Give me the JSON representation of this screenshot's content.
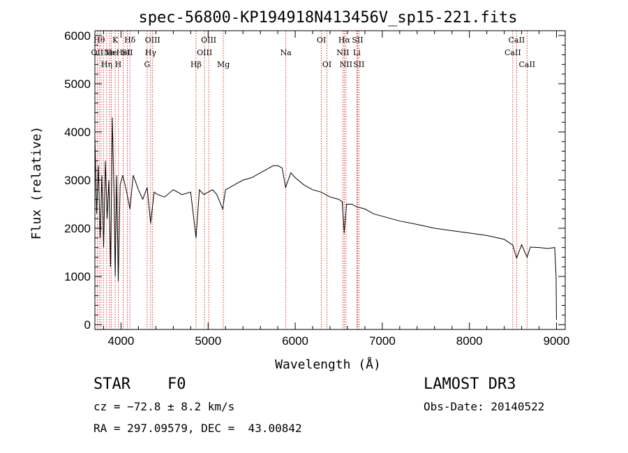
{
  "chart_data": {
    "type": "line",
    "title": "spec-56800-KP194918N413456V_sp15-221.fits",
    "xlabel": "Wavelength (Å)",
    "ylabel": "Flux (relative)",
    "xlim": [
      3700,
      9100
    ],
    "ylim": [
      -100,
      6100
    ],
    "xticks": [
      4000,
      5000,
      6000,
      7000,
      8000,
      9000
    ],
    "xtick_labels": [
      "4000",
      "5000",
      "6000",
      "7000",
      "8000",
      "9000"
    ],
    "yticks": [
      0,
      1000,
      2000,
      3000,
      4000,
      5000,
      6000
    ],
    "ytick_labels": [
      "0",
      "1000",
      "2000",
      "3000",
      "4000",
      "5000",
      "6000"
    ],
    "grid": false,
    "line_color": "#000000",
    "marker_color": "#cc0000",
    "spectrum": {
      "name": "flux",
      "x": [
        3700,
        3720,
        3740,
        3760,
        3780,
        3800,
        3820,
        3840,
        3860,
        3880,
        3900,
        3920,
        3933,
        3950,
        3968,
        3990,
        4020,
        4060,
        4102,
        4140,
        4200,
        4250,
        4300,
        4340,
        4380,
        4420,
        4500,
        4600,
        4700,
        4800,
        4861,
        4900,
        4950,
        5000,
        5050,
        5100,
        5167,
        5200,
        5300,
        5400,
        5500,
        5600,
        5700,
        5750,
        5800,
        5850,
        5890,
        5950,
        6000,
        6100,
        6200,
        6300,
        6400,
        6500,
        6540,
        6563,
        6590,
        6650,
        6700,
        6800,
        6900,
        7000,
        7200,
        7400,
        7600,
        7800,
        8000,
        8200,
        8400,
        8498,
        8542,
        8600,
        8662,
        8700,
        8800,
        8900,
        8980,
        8995,
        9000
      ],
      "y": [
        3900,
        2300,
        3300,
        1800,
        3100,
        1600,
        3400,
        2200,
        3000,
        1200,
        4300,
        2600,
        1000,
        3100,
        900,
        2900,
        3100,
        2800,
        2400,
        3100,
        2800,
        2600,
        2850,
        2100,
        2750,
        2700,
        2650,
        2800,
        2700,
        2750,
        1800,
        2800,
        2700,
        2750,
        2800,
        2700,
        2400,
        2800,
        2900,
        3000,
        3050,
        3150,
        3250,
        3300,
        3300,
        3250,
        2850,
        3150,
        3050,
        2900,
        2800,
        2750,
        2650,
        2600,
        2550,
        1900,
        2500,
        2500,
        2450,
        2400,
        2300,
        2250,
        2150,
        2080,
        2000,
        1950,
        1900,
        1850,
        1770,
        1650,
        1380,
        1660,
        1400,
        1610,
        1600,
        1580,
        1600,
        1000,
        100
      ]
    },
    "line_markers": [
      {
        "x": 3727,
        "label": "OII",
        "row": 1
      },
      {
        "x": 3750,
        "label": "Hθ",
        "row": 0
      },
      {
        "x": 3771,
        "label": "",
        "row": 2
      },
      {
        "x": 3798,
        "label": "",
        "row": 2
      },
      {
        "x": 3835,
        "label": "Hη",
        "row": 2
      },
      {
        "x": 3869,
        "label": "Ne",
        "row": 1
      },
      {
        "x": 3889,
        "label": "He",
        "row": 1
      },
      {
        "x": 3933,
        "label": "K",
        "row": 0
      },
      {
        "x": 3968,
        "label": "H",
        "row": 2
      },
      {
        "x": 4026,
        "label": "HeI",
        "row": 1
      },
      {
        "x": 4072,
        "label": "SII",
        "row": 1
      },
      {
        "x": 4102,
        "label": "Hδ",
        "row": 0
      },
      {
        "x": 4300,
        "label": "G",
        "row": 2
      },
      {
        "x": 4340,
        "label": "Hγ",
        "row": 1
      },
      {
        "x": 4363,
        "label": "OIII",
        "row": 0
      },
      {
        "x": 4861,
        "label": "Hβ",
        "row": 2
      },
      {
        "x": 4959,
        "label": "OIII",
        "row": 1
      },
      {
        "x": 5007,
        "label": "OIII",
        "row": 0
      },
      {
        "x": 5175,
        "label": "Mg",
        "row": 2
      },
      {
        "x": 5893,
        "label": "Na",
        "row": 1
      },
      {
        "x": 6300,
        "label": "OI",
        "row": 0
      },
      {
        "x": 6364,
        "label": "OI",
        "row": 2
      },
      {
        "x": 6548,
        "label": "NII",
        "row": 1
      },
      {
        "x": 6563,
        "label": "Hα",
        "row": 0
      },
      {
        "x": 6583,
        "label": "NII",
        "row": 2
      },
      {
        "x": 6707,
        "label": "Li",
        "row": 1
      },
      {
        "x": 6716,
        "label": "SII",
        "row": 0
      },
      {
        "x": 6731,
        "label": "SII",
        "row": 2
      },
      {
        "x": 8498,
        "label": "CaII",
        "row": 1
      },
      {
        "x": 8542,
        "label": "CaII",
        "row": 0
      },
      {
        "x": 8662,
        "label": "CaII",
        "row": 2
      }
    ]
  },
  "info": {
    "object_class": "STAR",
    "subclass": "F0",
    "survey": "LAMOST DR3",
    "redshift": "cz = −72.8 ± 8.2 km/s",
    "obs_date": "Obs-Date: 20140522",
    "coords": "RA = 297.09579, DEC =  43.00842"
  }
}
